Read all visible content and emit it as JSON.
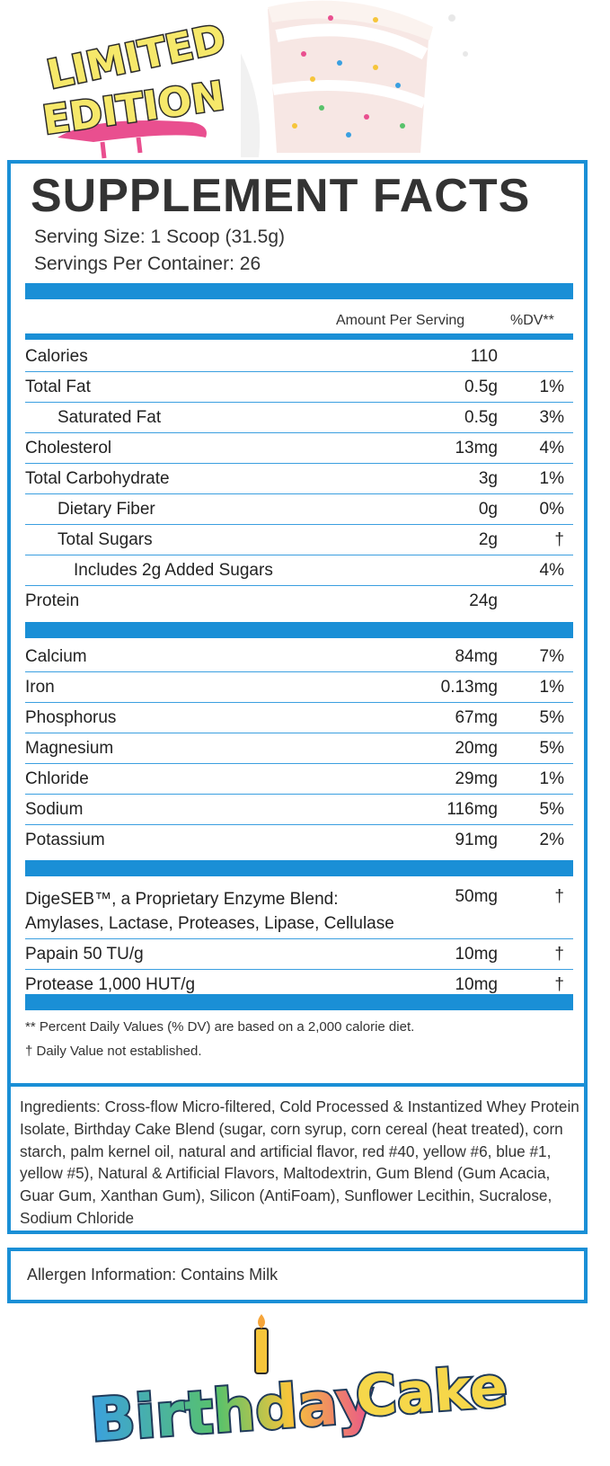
{
  "header": {
    "logo_line1": "LIMITED",
    "logo_line2": "EDITION"
  },
  "facts": {
    "title": "SUPPLEMENT FACTS",
    "serving_size": "Serving Size: 1 Scoop (31.5g)",
    "servings_per_container": "Servings Per Container: 26",
    "col_amount": "Amount Per Serving",
    "col_dv": "%DV**",
    "macros": [
      {
        "name": "Calories",
        "amount": "110",
        "dv": "",
        "indent": 0
      },
      {
        "name": "Total Fat",
        "amount": "0.5g",
        "dv": "1%",
        "indent": 0
      },
      {
        "name": "Saturated Fat",
        "amount": "0.5g",
        "dv": "3%",
        "indent": 1
      },
      {
        "name": "Cholesterol",
        "amount": "13mg",
        "dv": "4%",
        "indent": 0
      },
      {
        "name": "Total Carbohydrate",
        "amount": "3g",
        "dv": "1%",
        "indent": 0
      },
      {
        "name": "Dietary Fiber",
        "amount": "0g",
        "dv": "0%",
        "indent": 1
      },
      {
        "name": "Total Sugars",
        "amount": "2g",
        "dv": "†",
        "indent": 1
      },
      {
        "name": "Includes 2g Added Sugars",
        "amount": "",
        "dv": "4%",
        "indent": 2
      },
      {
        "name": "Protein",
        "amount": "24g",
        "dv": "",
        "indent": 0
      }
    ],
    "minerals": [
      {
        "name": "Calcium",
        "amount": "84mg",
        "dv": "7%"
      },
      {
        "name": "Iron",
        "amount": "0.13mg",
        "dv": "1%"
      },
      {
        "name": "Phosphorus",
        "amount": "67mg",
        "dv": "5%"
      },
      {
        "name": "Magnesium",
        "amount": "20mg",
        "dv": "5%"
      },
      {
        "name": "Chloride",
        "amount": "29mg",
        "dv": "1%"
      },
      {
        "name": "Sodium",
        "amount": "116mg",
        "dv": "5%"
      },
      {
        "name": "Potassium",
        "amount": "91mg",
        "dv": "2%"
      }
    ],
    "enzymes": [
      {
        "name": "DigeSEB™, a Proprietary Enzyme Blend:",
        "name2": "Amylases, Lactase, Proteases, Lipase, Cellulase",
        "amount": "50mg",
        "dv": "†"
      },
      {
        "name": "Papain 50 TU/g",
        "amount": "10mg",
        "dv": "†"
      },
      {
        "name": "Protease 1,000 HUT/g",
        "amount": "10mg",
        "dv": "†"
      }
    ],
    "footnote1": "** Percent Daily Values (% DV) are based on a 2,000 calorie diet.",
    "footnote2": "† Daily Value not established."
  },
  "ingredients": {
    "text": "Ingredients: Cross-flow Micro-filtered, Cold Processed & Instantized Whey Protein Isolate, Birthday Cake Blend (sugar, corn syrup, corn cereal (heat treated), corn starch, palm kernel oil, natural and artificial flavor, red #40, yellow #6, blue #1, yellow #5), Natural & Artificial Flavors, Maltodextrin, Gum Blend (Gum Acacia, Guar Gum, Xanthan Gum), Silicon (AntiFoam), Sunflower Lecithin, Sucralose, Sodium Chloride"
  },
  "allergen": {
    "text": "Allergen Information: Contains Milk"
  },
  "flavor": {
    "word1": "Birthday",
    "word2": "Cake"
  },
  "colors": {
    "accent": "#1a8fd6",
    "logo_pink": "#e94f8f",
    "logo_yellow": "#f6e86a"
  }
}
